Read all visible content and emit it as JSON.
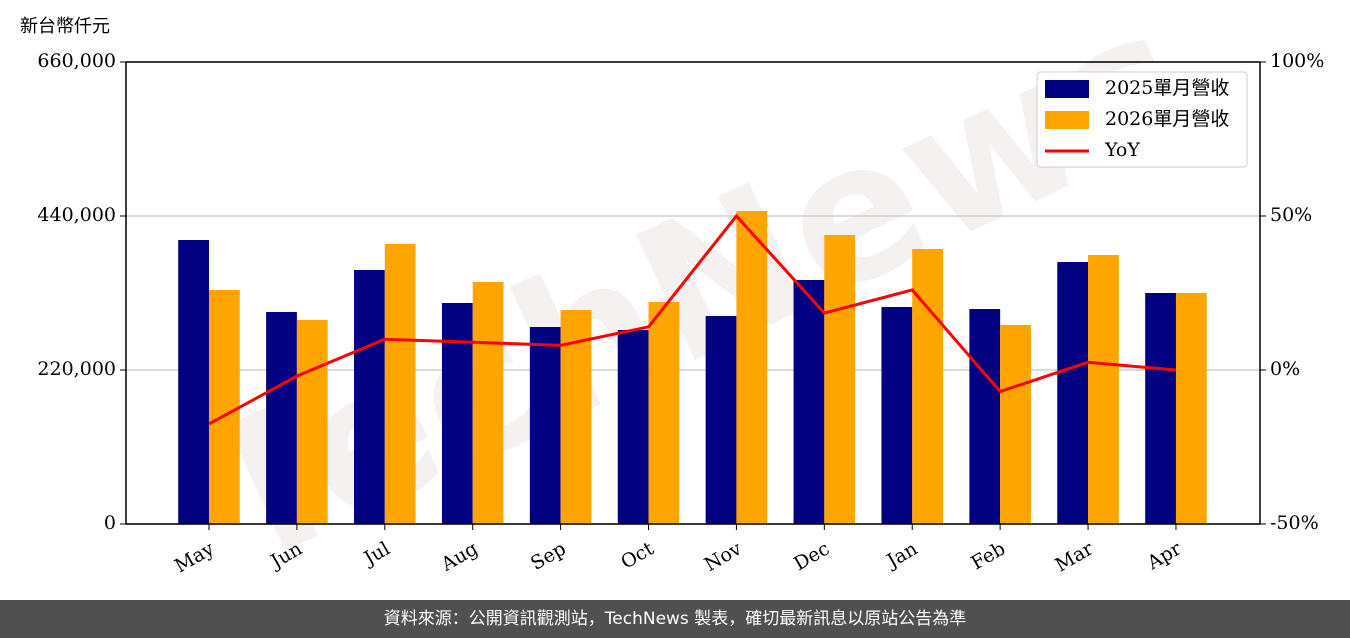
{
  "chart_data": {
    "type": "bar-line",
    "y_label": "新台幣仟元",
    "watermark": "TechNews",
    "categories": [
      "May",
      "Jun",
      "Jul",
      "Aug",
      "Sep",
      "Oct",
      "Nov",
      "Dec",
      "Jan",
      "Feb",
      "Mar",
      "Apr"
    ],
    "series": [
      {
        "name": "2025單月營收",
        "color": "#000080",
        "type": "bar",
        "values": [
          405700,
          302900,
          362900,
          315700,
          281400,
          277100,
          297100,
          348600,
          310000,
          307100,
          374300,
          330000
        ]
      },
      {
        "name": "2026單月營收",
        "color": "#ffa500",
        "type": "bar",
        "values": [
          334300,
          291400,
          400000,
          345700,
          305700,
          317100,
          447100,
          412900,
          392900,
          284300,
          384300,
          330000
        ]
      },
      {
        "name": "YoY",
        "color": "#ff0000",
        "type": "line",
        "axis": "y2",
        "values": [
          -17.5,
          -2,
          10,
          9,
          8,
          14,
          50,
          18.5,
          26,
          -7,
          2.5,
          0
        ]
      }
    ],
    "ylim": [
      0,
      660000
    ],
    "yticks": [
      0,
      {
        "value": 220000,
        "label": "220,000"
      },
      {
        "value": 440000,
        "label": "440,000"
      },
      {
        "value": 660000,
        "label": "660,000"
      }
    ],
    "y2lim": [
      -50,
      100
    ],
    "y2ticks": [
      {
        "value": -50,
        "label": "-50%"
      },
      {
        "value": 0,
        "label": "0%"
      },
      {
        "value": 50,
        "label": "50%"
      },
      {
        "value": 100,
        "label": "100%"
      }
    ],
    "grid": true,
    "legend": "upper right"
  },
  "footer": "資料來源：公開資訊觀測站，TechNews 製表，確切最新訊息以原站公告為準"
}
